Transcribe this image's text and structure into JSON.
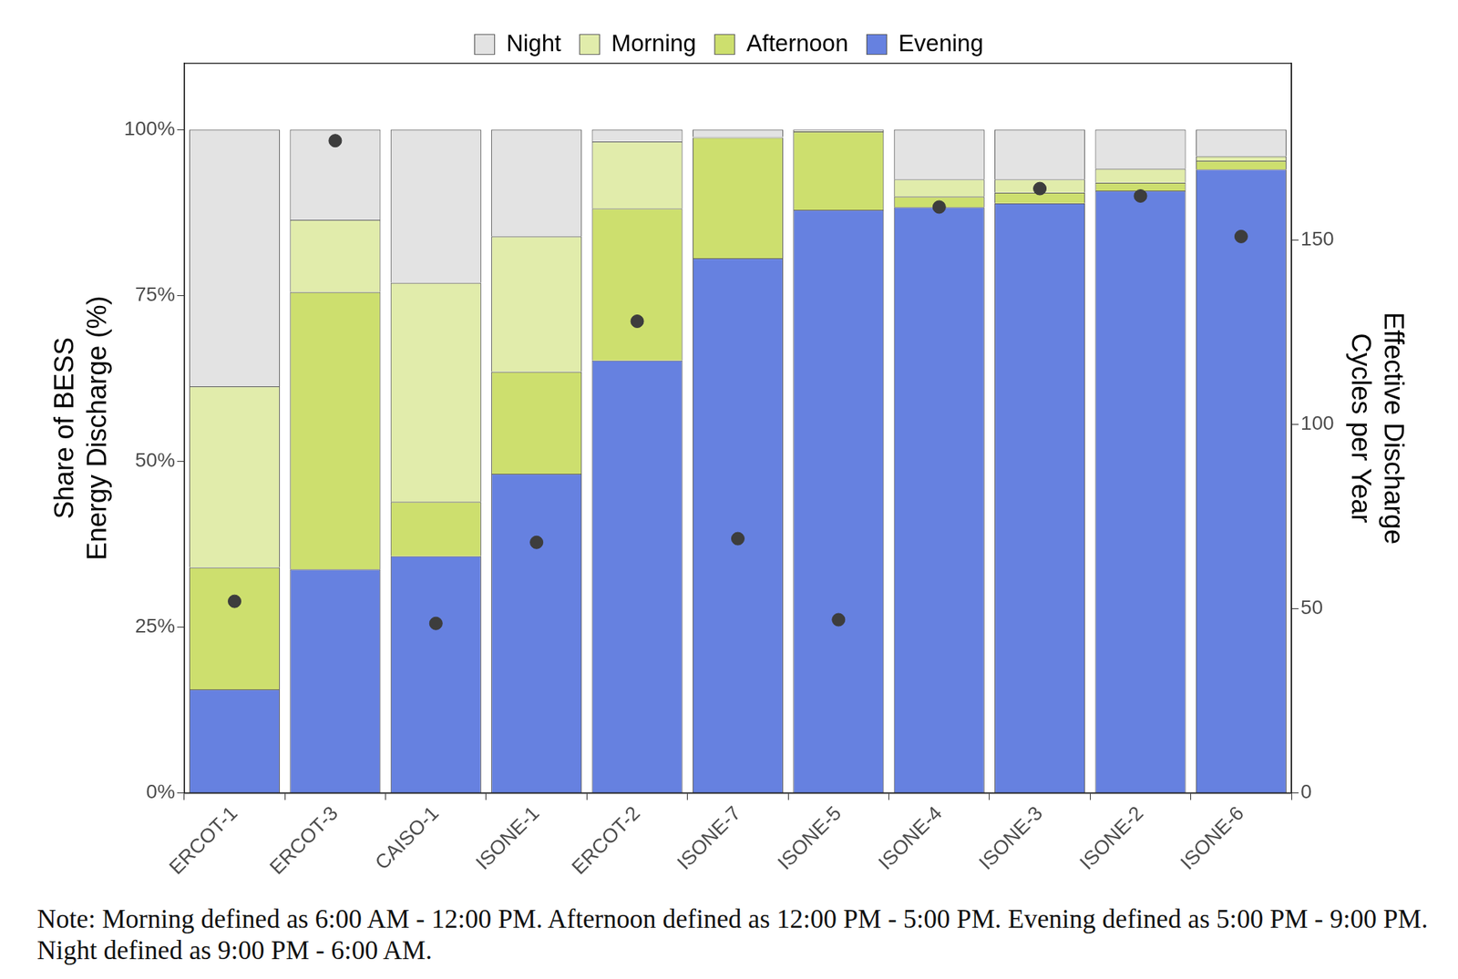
{
  "chart_data": {
    "type": "bar",
    "stacked": true,
    "legend": "top",
    "grid": false,
    "categories": [
      "ERCOT-1",
      "ERCOT-3",
      "CAISO-1",
      "ISONE-1",
      "ERCOT-2",
      "ISONE-7",
      "ISONE-5",
      "ISONE-4",
      "ISONE-3",
      "ISONE-2",
      "ISONE-6"
    ],
    "series": [
      {
        "name": "Night",
        "color": "#e3e3e3",
        "values": [
          38.7,
          13.6,
          23.1,
          16.1,
          1.8,
          1.1,
          0.2,
          7.5,
          7.5,
          5.9,
          4.0
        ]
      },
      {
        "name": "Morning",
        "color": "#e1ecab",
        "values": [
          27.3,
          10.9,
          33.0,
          20.4,
          10.1,
          0.1,
          0.1,
          2.6,
          2.0,
          2.1,
          0.7
        ]
      },
      {
        "name": "Afternoon",
        "color": "#cddf6e",
        "values": [
          18.4,
          41.8,
          8.2,
          15.4,
          22.9,
          18.2,
          11.8,
          1.6,
          1.6,
          1.2,
          1.3
        ]
      },
      {
        "name": "Evening",
        "color": "#6681e0",
        "values": [
          15.6,
          33.7,
          35.7,
          48.1,
          65.2,
          80.6,
          87.9,
          88.3,
          88.9,
          90.8,
          94.0
        ]
      },
      {
        "type": "scatter",
        "axis": "y2",
        "color": "#3d3d3d",
        "marker": "circle",
        "values": [
          52,
          177,
          46,
          68,
          128,
          69,
          47,
          159,
          164,
          162,
          151
        ]
      }
    ],
    "y_label": [
      "Share of BESS",
      "Energy Discharge (%)"
    ],
    "y2_label": [
      "Effective Discharge",
      "Cycles per Year"
    ],
    "ylim": [
      0,
      110
    ],
    "yticks": [
      {
        "value": 0,
        "label": "0%"
      },
      {
        "value": 25,
        "label": "25%"
      },
      {
        "value": 50,
        "label": "50%"
      },
      {
        "value": 75,
        "label": "75%"
      },
      {
        "value": 100,
        "label": "100%"
      }
    ],
    "y2lim": [
      0,
      198
    ],
    "y2ticks": [
      0,
      50,
      100,
      150
    ],
    "note": "Note: Morning defined as 6:00 AM - 12:00 PM. Afternoon defined as 12:00 PM - 5:00 PM. Evening defined as 5:00 PM - 9:00 PM. Night defined as 9:00 PM - 6:00 AM."
  }
}
